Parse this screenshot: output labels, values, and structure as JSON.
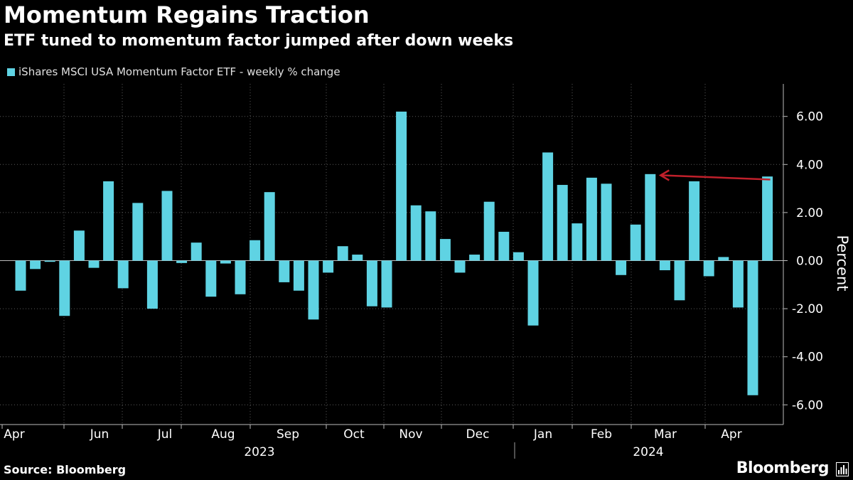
{
  "header": {
    "title": "Momentum Regains Traction",
    "subtitle": "ETF tuned to momentum factor jumped after down weeks"
  },
  "footer": {
    "source": "Source: Bloomberg",
    "brand": "Bloomberg"
  },
  "colors": {
    "bar": "#5fd3e3",
    "arrow": "#c0202b",
    "grid": "#5a5a5a",
    "background": "#000000"
  },
  "icons": {
    "brand_mark": "bloomberg-terminal-icon"
  },
  "chart_data": {
    "type": "bar",
    "legend": "iShares MSCI USA Momentum Factor ETF - weekly % change",
    "legend_position": "top-left",
    "ylabel": "Percent",
    "ylim": [
      -6.8,
      7.2
    ],
    "yticks": [
      6,
      4,
      2,
      0,
      -2,
      -4,
      -6
    ],
    "ytick_labels": [
      "6.00",
      "4.00",
      "2.00",
      "0.00",
      "-2.00",
      "-4.00",
      "-6.00"
    ],
    "grid": true,
    "month_labels": [
      "Apr",
      "Jun",
      "Jul",
      "Aug",
      "Sep",
      "Oct",
      "Nov",
      "Dec",
      "Jan",
      "Feb",
      "Mar",
      "Apr"
    ],
    "year_labels": [
      "2023",
      "2024"
    ],
    "values": [
      -1.25,
      -0.35,
      -0.05,
      -2.3,
      1.25,
      -0.3,
      3.3,
      -1.15,
      2.4,
      -2.0,
      2.9,
      -0.1,
      0.75,
      -1.5,
      -0.12,
      -1.4,
      0.85,
      2.85,
      -0.9,
      -1.25,
      -2.45,
      -0.5,
      0.6,
      0.25,
      -1.9,
      -1.95,
      6.2,
      2.3,
      2.05,
      0.9,
      -0.5,
      0.25,
      2.45,
      1.2,
      0.35,
      -2.7,
      4.5,
      3.15,
      1.55,
      3.45,
      3.2,
      -0.6,
      1.5,
      3.6,
      -0.4,
      -1.65,
      3.3,
      -0.65,
      0.15,
      -1.95,
      -5.6,
      3.5
    ],
    "annotation": {
      "type": "arrow",
      "from_bar": 51,
      "to_bar": 43,
      "value": 3.58
    }
  }
}
